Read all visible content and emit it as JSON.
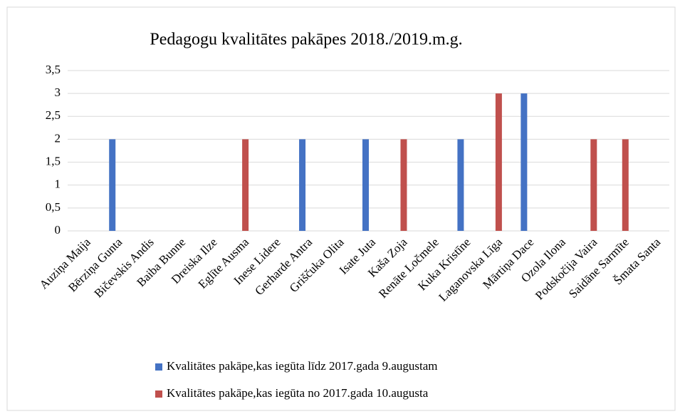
{
  "chart_data": {
    "type": "bar",
    "title": "Pedagogu kvalitātes pakāpes 2018./2019.m.g.",
    "categories": [
      "Auziņa Maija",
      "Bērziņa Gunta",
      "Bičevskis Andis",
      "Baiba Bunne",
      "Dreiska Ilze",
      "Eglīte Ausma",
      "Inese Lidere",
      "Gerharde Antra",
      "Griščuka Olita",
      "Isate Juta",
      "Kaša Zoja",
      "Renāte Ločmele",
      "Kuka Kristīne",
      "Laganovska Līga",
      "Mārtiņa Dace",
      "Ozola Ilona",
      "Podskočija Vaira",
      "Saidāne Sarmīte",
      "Šmata Santa"
    ],
    "series": [
      {
        "name": "Kvalitātes pakāpe,kas iegūta līdz 2017.gada 9.augustam",
        "color": "#4472c4",
        "values": [
          null,
          2,
          null,
          null,
          null,
          null,
          null,
          2,
          null,
          2,
          null,
          null,
          2,
          null,
          3,
          null,
          null,
          null,
          null
        ]
      },
      {
        "name": "Kvalitātes pakāpe,kas iegūta no 2017.gada 10.augusta",
        "color": "#c0504d",
        "values": [
          null,
          null,
          null,
          null,
          null,
          2,
          null,
          null,
          null,
          null,
          2,
          null,
          null,
          3,
          null,
          null,
          2,
          2,
          null
        ]
      }
    ],
    "ylim": [
      0,
      3.5
    ],
    "yticks": [
      0,
      {
        "value": 0.5,
        "label": "0,5"
      },
      1,
      {
        "value": 1.5,
        "label": "1,5"
      },
      2,
      {
        "value": 2.5,
        "label": "2,5"
      },
      3,
      {
        "value": 3.5,
        "label": "3,5"
      }
    ],
    "grid": true,
    "legend": "bottom"
  }
}
